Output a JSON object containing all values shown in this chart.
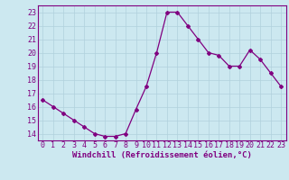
{
  "x": [
    0,
    1,
    2,
    3,
    4,
    5,
    6,
    7,
    8,
    9,
    10,
    11,
    12,
    13,
    14,
    15,
    16,
    17,
    18,
    19,
    20,
    21,
    22,
    23
  ],
  "y": [
    16.5,
    16.0,
    15.5,
    15.0,
    14.5,
    14.0,
    13.8,
    13.8,
    14.0,
    15.8,
    17.5,
    20.0,
    23.0,
    23.0,
    22.0,
    21.0,
    20.0,
    19.8,
    19.0,
    19.0,
    20.2,
    19.5,
    18.5,
    17.5
  ],
  "line_color": "#800080",
  "marker": "D",
  "marker_size": 2,
  "bg_color": "#cce8f0",
  "grid_color": "#b0d0dc",
  "xlabel": "Windchill (Refroidissement éolien,°C)",
  "xlim": [
    -0.5,
    23.5
  ],
  "ylim": [
    13.5,
    23.5
  ],
  "yticks": [
    14,
    15,
    16,
    17,
    18,
    19,
    20,
    21,
    22,
    23
  ],
  "xticks": [
    0,
    1,
    2,
    3,
    4,
    5,
    6,
    7,
    8,
    9,
    10,
    11,
    12,
    13,
    14,
    15,
    16,
    17,
    18,
    19,
    20,
    21,
    22,
    23
  ],
  "tick_fontsize": 6,
  "xlabel_fontsize": 6.5
}
